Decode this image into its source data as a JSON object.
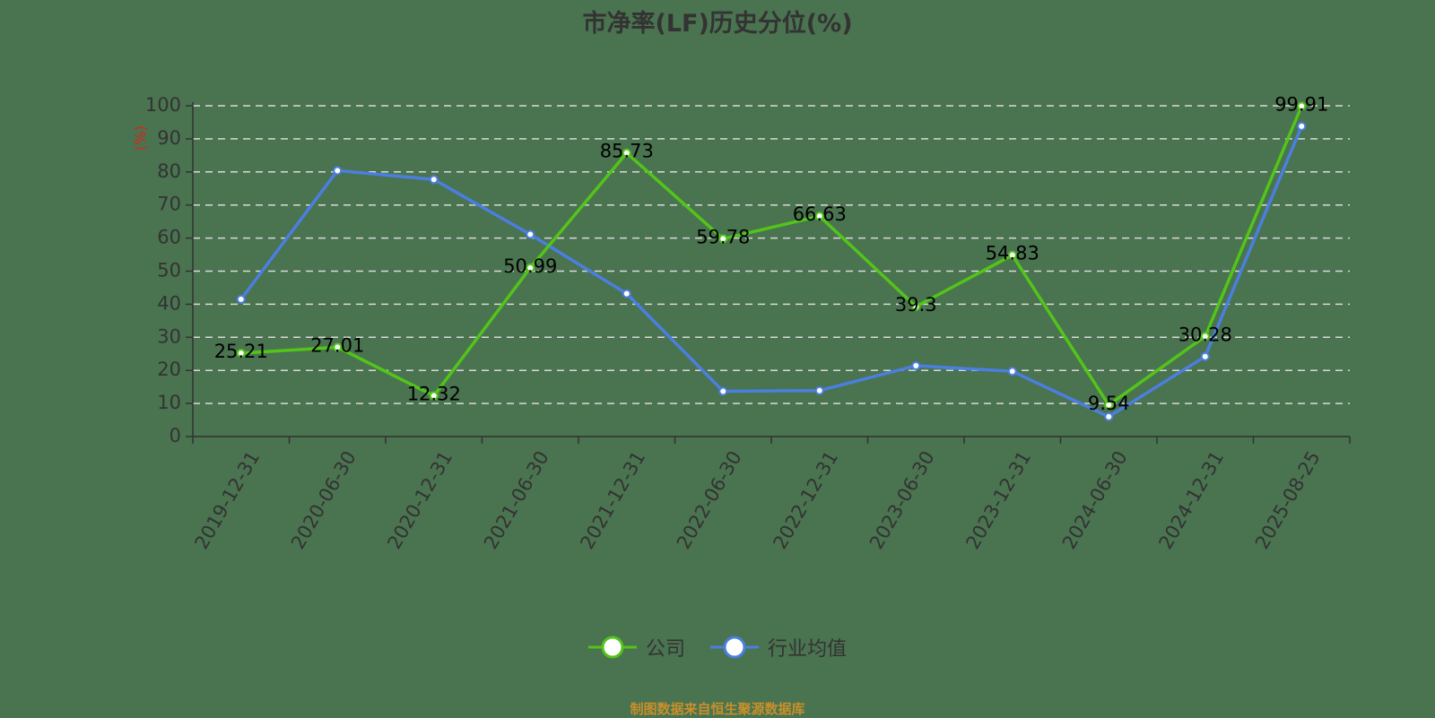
{
  "title": "市净率(LF)历史分位(%)",
  "source_note": "制图数据来自恒生聚源数据库",
  "legend": [
    {
      "label": "公司",
      "color": "#52c41a"
    },
    {
      "label": "行业均值",
      "color": "#4a7fe0"
    }
  ],
  "colors": {
    "background": "#4a7350",
    "company": "#52c41a",
    "industry": "#4a7fe0",
    "axis": "#333333",
    "grid": "#d9d9d9",
    "ylabel": "#e0201c",
    "source": "#c8902a"
  },
  "chart_data": {
    "type": "line",
    "title": "市净率(LF)历史分位(%)",
    "xlabel": "",
    "ylabel": "(%)",
    "ylim": [
      0,
      100
    ],
    "yticks": [
      0,
      10,
      20,
      30,
      40,
      50,
      60,
      70,
      80,
      90,
      100
    ],
    "grid": true,
    "legend_position": "bottom",
    "categories": [
      "2019-12-31",
      "2020-06-30",
      "2020-12-31",
      "2021-06-30",
      "2021-12-31",
      "2022-06-30",
      "2022-12-31",
      "2023-06-30",
      "2023-12-31",
      "2024-06-30",
      "2024-12-31",
      "2025-08-25"
    ],
    "series": [
      {
        "name": "公司",
        "values": [
          25.21,
          27.01,
          12.32,
          50.99,
          85.73,
          59.78,
          66.63,
          39.3,
          54.83,
          9.54,
          30.28,
          99.91
        ],
        "labels_shown": true
      },
      {
        "name": "行业均值",
        "values": [
          41.5,
          80.4,
          77.7,
          61.1,
          43.2,
          13.7,
          13.9,
          21.4,
          19.7,
          6.0,
          24.2,
          93.8
        ],
        "labels_shown": false
      }
    ]
  }
}
